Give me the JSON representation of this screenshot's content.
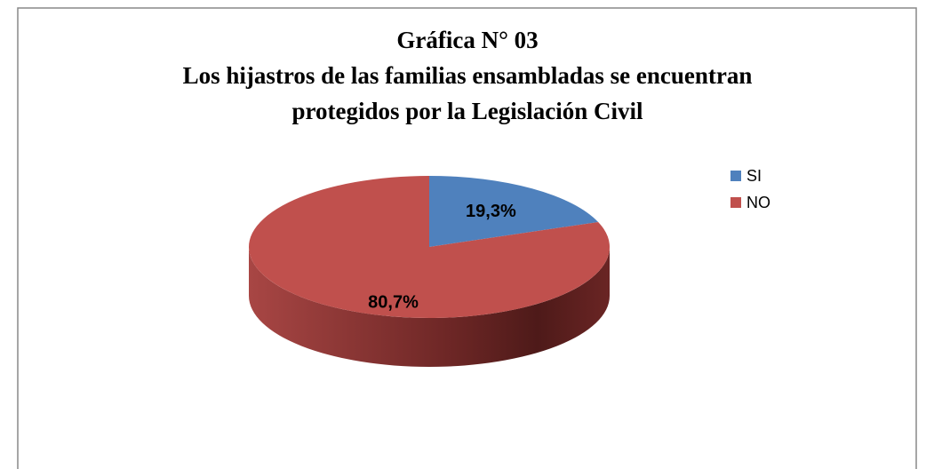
{
  "chart_data": {
    "type": "pie",
    "title": [
      "Gráfica N° 03",
      "Los hijastros de las familias ensambladas se encuentran",
      "protegidos por la Legislación Civil"
    ],
    "categories": [
      "SI",
      "NO"
    ],
    "values": [
      19.3,
      80.7
    ],
    "value_labels": [
      "19,3%",
      "80,7%"
    ],
    "colors": [
      "#4f81bd",
      "#c0504d"
    ],
    "legend": "right"
  }
}
